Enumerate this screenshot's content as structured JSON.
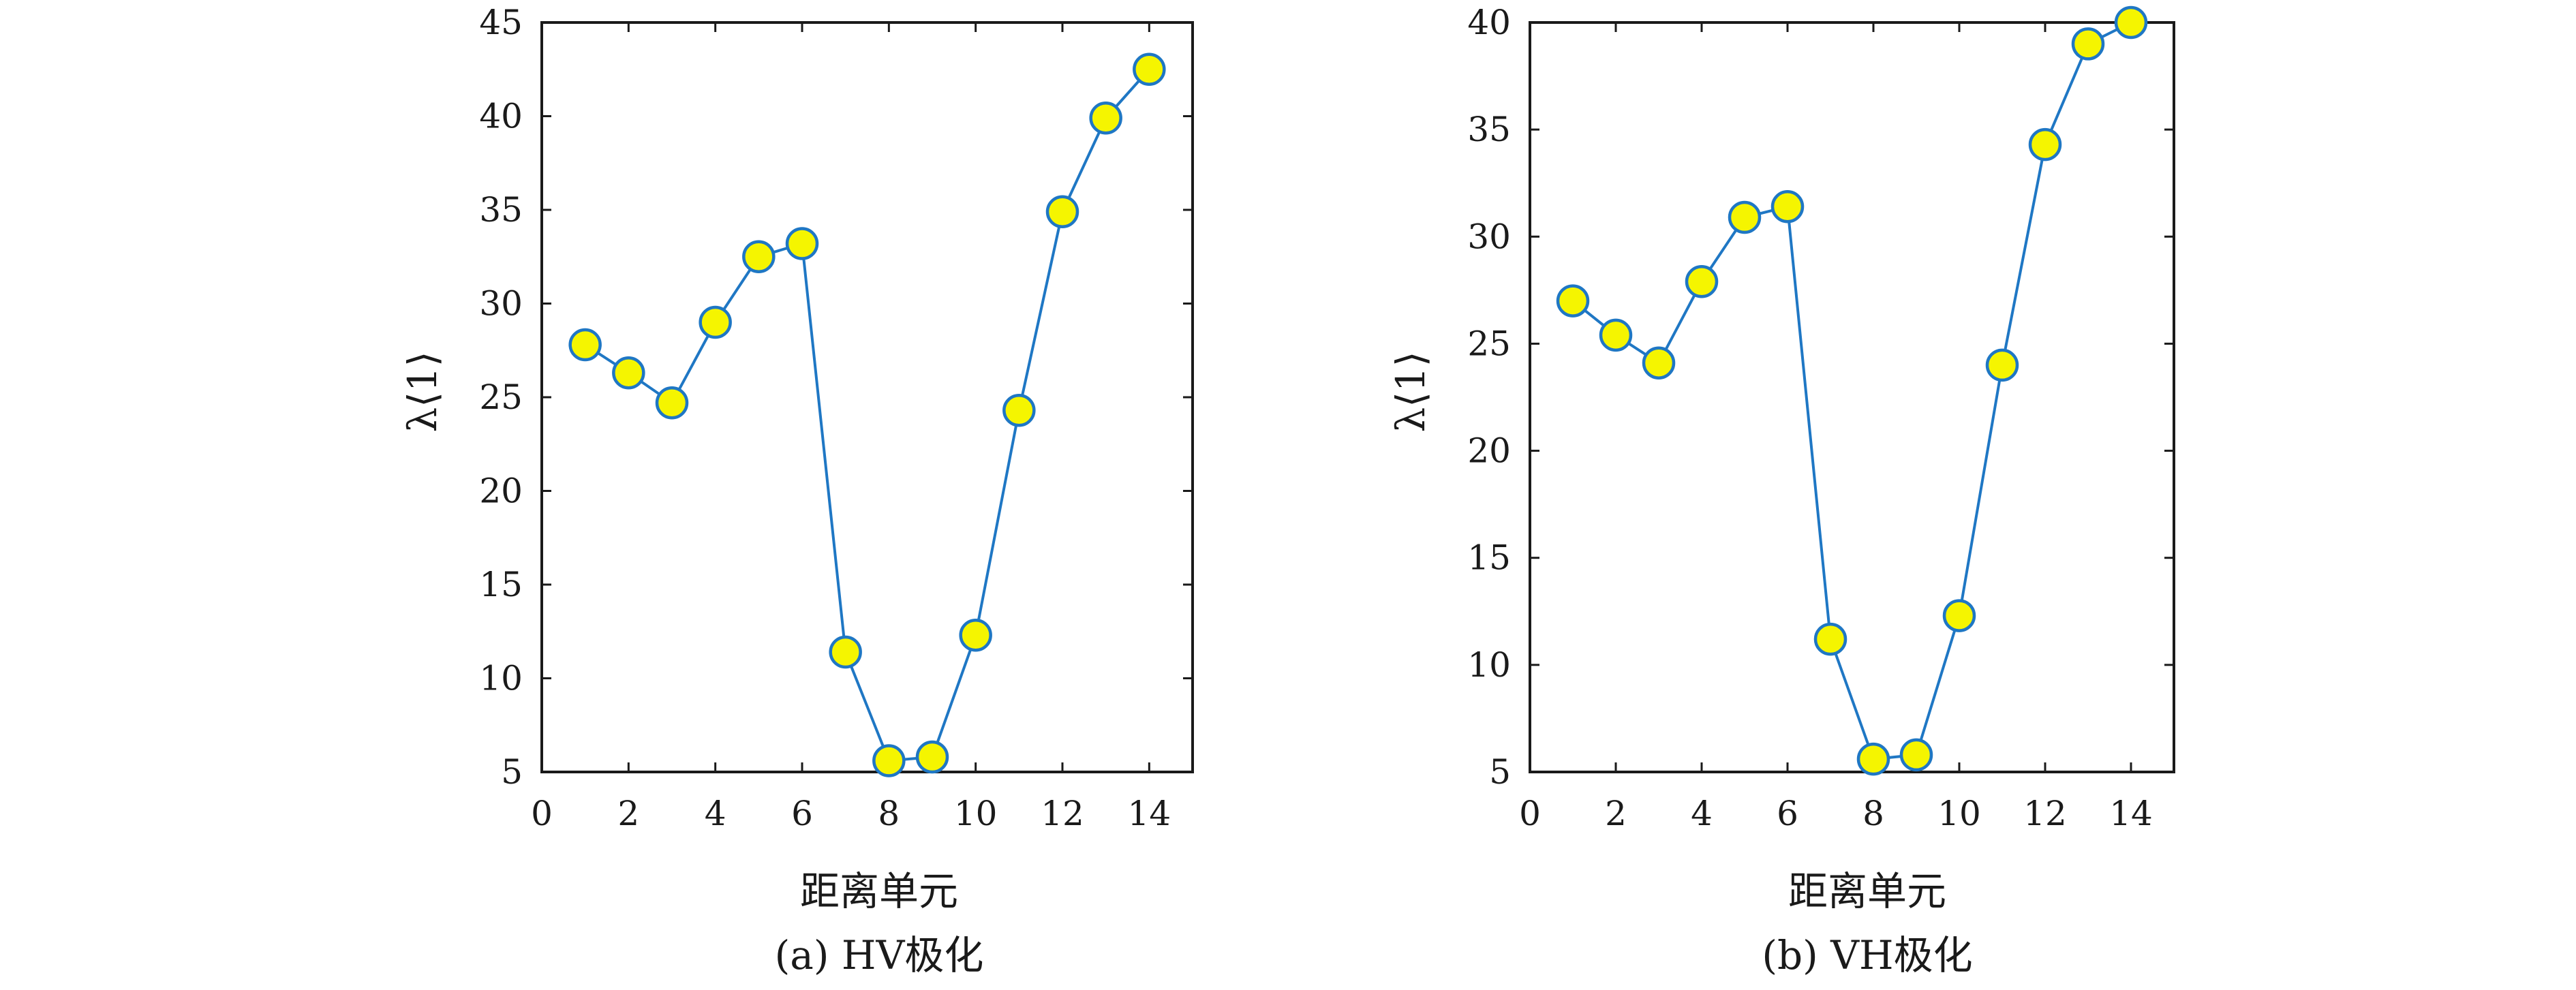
{
  "chart_data": [
    {
      "type": "line",
      "caption": "(a) HV极化",
      "xlabel": "距离单元",
      "ylabel": "λ⟨1⟩",
      "xlim": [
        0,
        15
      ],
      "ylim": [
        5,
        45
      ],
      "xticks": [
        0,
        2,
        4,
        6,
        8,
        10,
        12,
        14
      ],
      "yticks": [
        5,
        10,
        15,
        20,
        25,
        30,
        35,
        40,
        45
      ],
      "grid": false,
      "series": [
        {
          "x": [
            1,
            2,
            3,
            4,
            5,
            6,
            7,
            8,
            9,
            10,
            11,
            12,
            13,
            14
          ],
          "y": [
            27.8,
            26.3,
            24.7,
            29.0,
            32.5,
            33.2,
            11.4,
            5.6,
            5.8,
            12.3,
            24.3,
            34.9,
            39.9,
            42.5
          ]
        }
      ]
    },
    {
      "type": "line",
      "caption": "(b) VH极化",
      "xlabel": "距离单元",
      "ylabel": "λ⟨1⟩",
      "xlim": [
        0,
        15
      ],
      "ylim": [
        5,
        40
      ],
      "xticks": [
        0,
        2,
        4,
        6,
        8,
        10,
        12,
        14
      ],
      "yticks": [
        5,
        10,
        15,
        20,
        25,
        30,
        35,
        40
      ],
      "grid": false,
      "series": [
        {
          "x": [
            1,
            2,
            3,
            4,
            5,
            6,
            7,
            8,
            9,
            10,
            11,
            12,
            13,
            14
          ],
          "y": [
            27.0,
            25.4,
            24.1,
            27.9,
            30.9,
            31.4,
            11.2,
            5.6,
            5.8,
            12.3,
            24.0,
            34.3,
            39.0,
            40.0
          ]
        }
      ]
    }
  ],
  "colors": {
    "line": "#1f77c4",
    "marker_fill": "#f5f500",
    "axis": "#1a1a1a"
  }
}
